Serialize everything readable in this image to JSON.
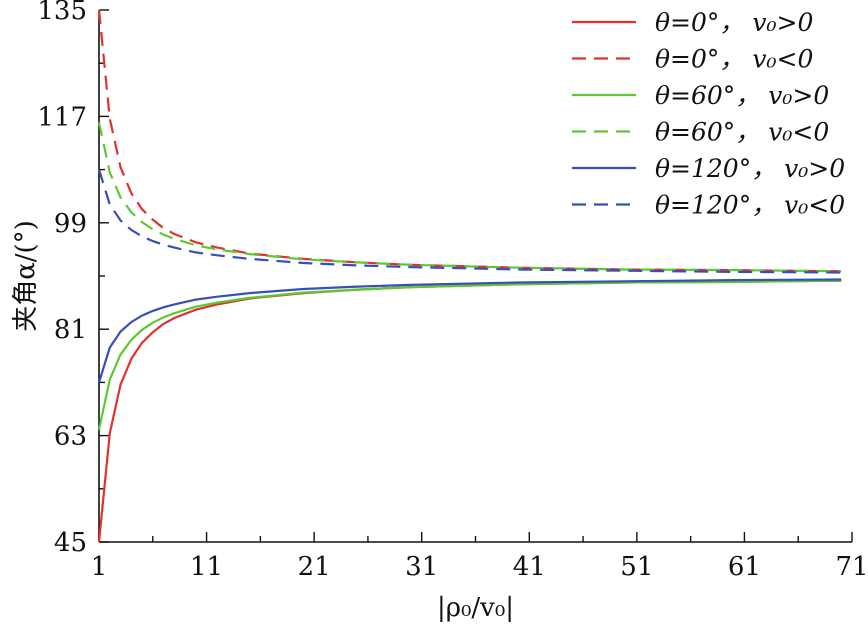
{
  "chart_data": {
    "type": "line",
    "xlabel": "|ρ₀/v₀|",
    "ylabel": "夹角α/(°)",
    "xlim": [
      1,
      71
    ],
    "ylim": [
      45,
      135
    ],
    "x_ticks": [
      1,
      11,
      21,
      31,
      41,
      51,
      61,
      71
    ],
    "y_ticks": [
      45,
      63,
      81,
      99,
      117,
      135
    ],
    "legend_position": "top-right",
    "grid": false,
    "series": [
      {
        "name": "θ=0°， v₀>0",
        "color": "#e03030",
        "dash": "solid",
        "x": [
          1,
          2,
          3,
          4,
          5,
          6,
          7,
          8,
          10,
          12,
          15,
          20,
          25,
          30,
          40,
          50,
          60,
          70
        ],
        "y": [
          45,
          63.4,
          71.6,
          76.0,
          78.7,
          80.5,
          81.9,
          82.9,
          84.3,
          85.2,
          86.2,
          87.1,
          87.7,
          88.1,
          88.6,
          88.9,
          89.0,
          89.2
        ]
      },
      {
        "name": "θ=0°， v₀<0",
        "color": "#e03030",
        "dash": "dashed",
        "x": [
          1,
          2,
          3,
          4,
          5,
          6,
          7,
          8,
          10,
          12,
          15,
          20,
          25,
          30,
          40,
          50,
          60,
          70
        ],
        "y": [
          135,
          116.6,
          108.4,
          104.0,
          101.3,
          99.5,
          98.1,
          97.1,
          95.7,
          94.8,
          93.8,
          92.9,
          92.3,
          91.9,
          91.4,
          91.1,
          91.0,
          90.8
        ]
      },
      {
        "name": "θ=60°， v₀>0",
        "color": "#5ec832",
        "dash": "solid",
        "x": [
          1,
          2,
          3,
          4,
          5,
          6,
          7,
          8,
          10,
          12,
          15,
          20,
          25,
          30,
          40,
          50,
          60,
          70
        ],
        "y": [
          64.0,
          72.5,
          76.7,
          79.2,
          80.9,
          82.1,
          83.0,
          83.7,
          84.8,
          85.5,
          86.3,
          87.2,
          87.7,
          88.1,
          88.6,
          88.9,
          89.0,
          89.2
        ]
      },
      {
        "name": "θ=60°， v₀<0",
        "color": "#5ec832",
        "dash": "dashed",
        "x": [
          1,
          2,
          3,
          4,
          5,
          6,
          7,
          8,
          10,
          12,
          15,
          20,
          25,
          30,
          40,
          50,
          60,
          70
        ],
        "y": [
          116.0,
          107.5,
          103.3,
          100.8,
          99.1,
          97.9,
          97.0,
          96.3,
          95.2,
          94.5,
          93.7,
          92.8,
          92.3,
          91.9,
          91.4,
          91.1,
          91.0,
          90.8
        ]
      },
      {
        "name": "θ=120°， v₀>0",
        "color": "#3650b8",
        "dash": "solid",
        "x": [
          1,
          2,
          3,
          4,
          5,
          6,
          7,
          8,
          10,
          12,
          15,
          20,
          25,
          30,
          40,
          50,
          60,
          70
        ],
        "y": [
          72.0,
          77.9,
          80.6,
          82.2,
          83.3,
          84.1,
          84.7,
          85.2,
          86.0,
          86.5,
          87.1,
          87.8,
          88.2,
          88.5,
          88.9,
          89.1,
          89.3,
          89.4
        ]
      },
      {
        "name": "θ=120°， v₀<0",
        "color": "#3650b8",
        "dash": "dashed",
        "x": [
          1,
          2,
          3,
          4,
          5,
          6,
          7,
          8,
          10,
          12,
          15,
          20,
          25,
          30,
          40,
          50,
          60,
          70
        ],
        "y": [
          108.0,
          102.1,
          99.4,
          97.8,
          96.7,
          95.9,
          95.3,
          94.8,
          94.0,
          93.5,
          92.9,
          92.2,
          91.8,
          91.5,
          91.1,
          90.9,
          90.7,
          90.6
        ]
      }
    ]
  }
}
